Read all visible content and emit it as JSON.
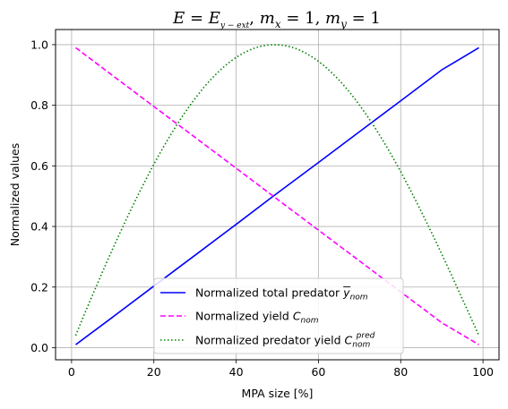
{
  "chart_data": {
    "type": "line",
    "title": {
      "e1": "E",
      "eq1": " = ",
      "e2": "E",
      "e2_sub": "y − ext",
      "sep1": ",   ",
      "mx": "m",
      "mx_sub": "x",
      "mx_val": " = 1,   ",
      "my": "m",
      "my_sub": "y",
      "my_val": " = 1"
    },
    "xlabel": "MPA size [%]",
    "ylabel": "Normalized values",
    "xlim": [
      -3.9,
      103.9
    ],
    "ylim": [
      -0.04,
      1.05
    ],
    "xticks": [
      0,
      20,
      40,
      60,
      80,
      100
    ],
    "yticks": [
      0.0,
      0.2,
      0.4,
      0.6,
      0.8,
      1.0
    ],
    "xtick_labels": [
      "0",
      "20",
      "40",
      "60",
      "80",
      "100"
    ],
    "ytick_labels": [
      "0.0",
      "0.2",
      "0.4",
      "0.6",
      "0.8",
      "1.0"
    ],
    "grid": true,
    "legend_position": "lower-center",
    "legend": [
      {
        "prefix": "Normalized total predator ",
        "math": "y",
        "overline": true,
        "sub": "nom",
        "sup": ""
      },
      {
        "prefix": "Normalized yield ",
        "math": "C",
        "overline": false,
        "sub": "nom",
        "sup": ""
      },
      {
        "prefix": "Normalized predator yield ",
        "math": "C",
        "overline": false,
        "sub": "nom",
        "sup": "pred"
      }
    ],
    "series": [
      {
        "name": "Normalized total predator y nom",
        "color": "#0000ff",
        "dash": "solid",
        "x": [
          1,
          10,
          20,
          30,
          40,
          49,
          60,
          70,
          80,
          90,
          99
        ],
        "y": [
          0.01,
          0.101,
          0.203,
          0.305,
          0.407,
          0.5,
          0.611,
          0.713,
          0.815,
          0.917,
          0.99
        ]
      },
      {
        "name": "Normalized yield C nom",
        "color": "#ff00ff",
        "dash": "dashed",
        "x": [
          1,
          10,
          20,
          30,
          40,
          50,
          60,
          70,
          80,
          90,
          99
        ],
        "y": [
          0.99,
          0.898,
          0.796,
          0.694,
          0.592,
          0.49,
          0.388,
          0.286,
          0.184,
          0.082,
          0.01
        ]
      },
      {
        "name": "Normalized predator yield C nom pred",
        "color": "#008000",
        "dash": "dotted",
        "x": [
          1,
          5,
          10,
          15,
          20,
          25,
          30,
          35,
          40,
          45,
          48,
          52,
          55,
          60,
          65,
          70,
          75,
          80,
          85,
          90,
          95,
          99
        ],
        "y": [
          0.04,
          0.2,
          0.38,
          0.53,
          0.665,
          0.775,
          0.865,
          0.93,
          0.975,
          0.997,
          1.0,
          0.995,
          0.98,
          0.94,
          0.875,
          0.785,
          0.67,
          0.535,
          0.38,
          0.21,
          0.03,
          0.04
        ]
      }
    ]
  }
}
